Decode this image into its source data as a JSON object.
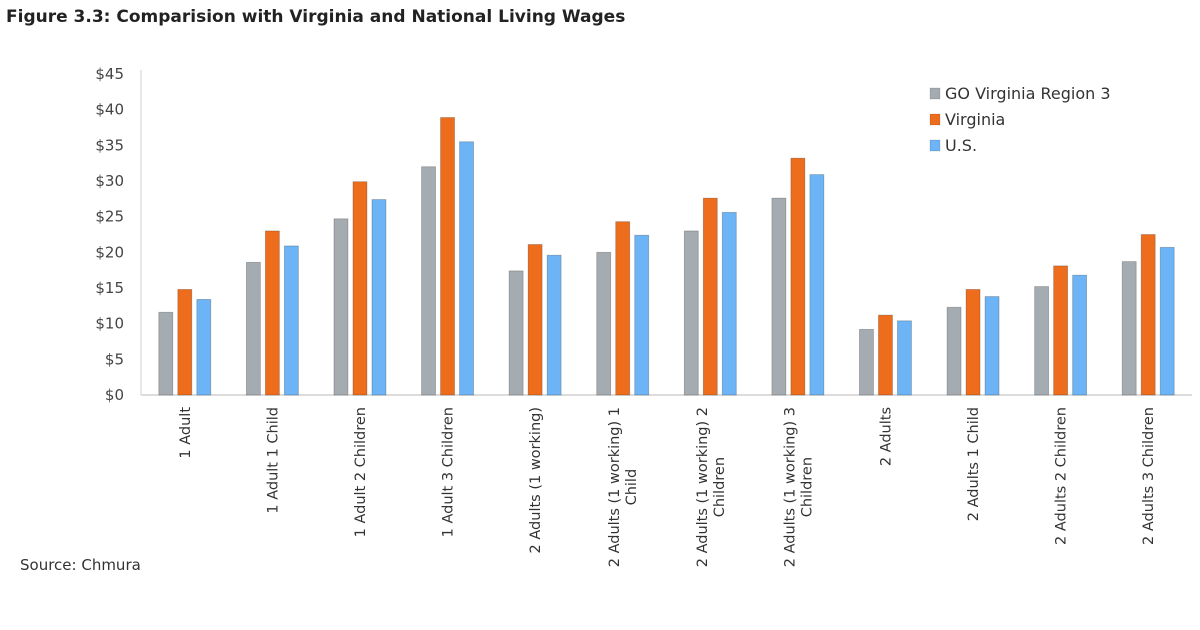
{
  "chart_data": {
    "type": "bar",
    "title": "Figure 3.3: Comparision with Virginia and National Living Wages",
    "source": "Source: Chmura",
    "xlabel": "",
    "ylabel": "",
    "ylim": [
      0,
      45
    ],
    "yticks": [
      0,
      5,
      10,
      15,
      20,
      25,
      30,
      35,
      40,
      45
    ],
    "ytick_labels": [
      "$0",
      "$5",
      "$10",
      "$15",
      "$20",
      "$25",
      "$30",
      "$35",
      "$40",
      "$45"
    ],
    "grid": false,
    "legend_position": "top-right",
    "categories": [
      [
        "1 Adult"
      ],
      [
        "1 Adult 1 Child"
      ],
      [
        "1 Adult 2 Children"
      ],
      [
        "1 Adult 3 Children"
      ],
      [
        "2 Adults (1 working)"
      ],
      [
        "2 Adults (1 working) 1",
        "Child"
      ],
      [
        "2 Adults (1 working) 2",
        "Children"
      ],
      [
        "2 Adults (1 working) 3",
        "Children"
      ],
      [
        "2 Adults"
      ],
      [
        "2 Adults 1 Child"
      ],
      [
        "2 Adults 2 Children"
      ],
      [
        "2 Adults 3 Children"
      ]
    ],
    "series": [
      {
        "name": "GO Virginia Region 3",
        "color": "#a5acb1",
        "values": [
          11.6,
          18.6,
          24.7,
          32.0,
          17.4,
          20.0,
          23.0,
          27.6,
          9.2,
          12.3,
          15.2,
          18.7
        ]
      },
      {
        "name": "Virginia",
        "color": "#ed6d1c",
        "values": [
          14.8,
          23.0,
          29.9,
          38.9,
          21.1,
          24.3,
          27.6,
          33.2,
          11.2,
          14.8,
          18.1,
          22.5
        ]
      },
      {
        "name": "U.S.",
        "color": "#6cb4f5",
        "values": [
          13.4,
          20.9,
          27.4,
          35.5,
          19.6,
          22.4,
          25.6,
          30.9,
          10.4,
          13.8,
          16.8,
          20.7
        ]
      }
    ]
  }
}
